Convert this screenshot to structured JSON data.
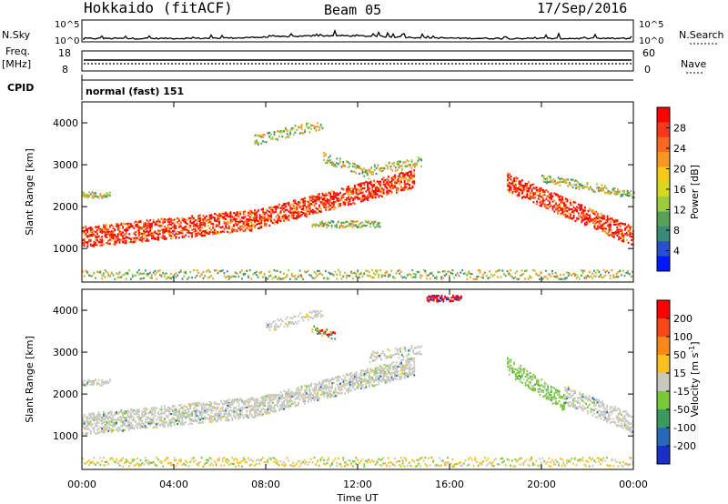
{
  "header": {
    "title": "Hokkaido (fitACF)",
    "beam": "Beam 05",
    "date": "17/Sep/2016"
  },
  "noise_panel": {
    "left_label": "N.Sky",
    "right_label": "N.Search",
    "yticks": [
      "10^5",
      "10^0"
    ]
  },
  "freq_panel": {
    "left_label_1": "Freq.",
    "left_label_2": "[MHz]",
    "right_label": "Nave",
    "left_ticks": [
      "18",
      "8"
    ],
    "right_ticks": [
      "60",
      "0"
    ]
  },
  "cpid_panel": {
    "label": "CPID",
    "mode": "normal (fast) 151"
  },
  "chart_data": [
    {
      "type": "heatmap",
      "title": "",
      "ylabel": "Slant Range [km]",
      "ylim": [
        200,
        4500
      ],
      "yticks": [
        1000,
        2000,
        3000,
        4000
      ],
      "colorbar": {
        "label": "Power [dB]",
        "ticks": [
          4,
          8,
          12,
          16,
          20,
          24,
          28
        ],
        "colors": [
          "#0018ff",
          "#2850c8",
          "#3a8a7a",
          "#58a058",
          "#9ccc3c",
          "#d8d820",
          "#f8c818",
          "#f89820",
          "#f86820",
          "#f83818",
          "#ff0000"
        ]
      }
    },
    {
      "type": "heatmap",
      "title": "",
      "ylabel": "Velocity [m s",
      "ylabel_sup": "-1",
      "ylabel_close": "]",
      "slant_label": "Slant Range [km]",
      "ylim": [
        200,
        4500
      ],
      "yticks": [
        1000,
        2000,
        3000,
        4000
      ],
      "colorbar": {
        "label": "Velocity [m s",
        "ticks": [
          200,
          100,
          50,
          15,
          -15,
          -50,
          -100,
          -200
        ],
        "colors": [
          "#1830c8",
          "#2868b8",
          "#3a9a60",
          "#78c838",
          "#c8c8c0",
          "#f8c020",
          "#f88818",
          "#f84818",
          "#ff0000"
        ]
      }
    }
  ],
  "xaxis": {
    "label": "Time UT",
    "ticks": [
      "00:00",
      "04:00",
      "08:00",
      "12:00",
      "16:00",
      "20:00",
      "00:00"
    ]
  }
}
